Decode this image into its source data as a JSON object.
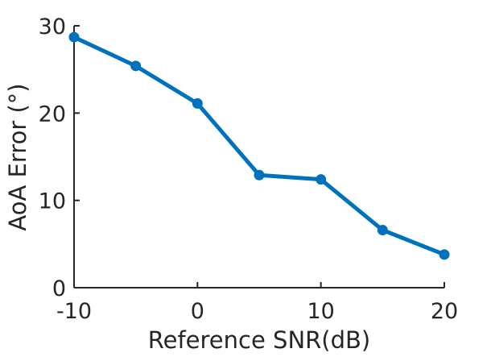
{
  "chart_data": {
    "type": "line",
    "title": "",
    "xlabel": "Reference SNR(dB)",
    "ylabel": "AoA Error (°)",
    "xlim": [
      -10,
      20
    ],
    "ylim": [
      0,
      30
    ],
    "x_ticks": [
      -10,
      0,
      10,
      20
    ],
    "y_ticks": [
      0,
      10,
      20,
      30
    ],
    "grid": false,
    "series": [
      {
        "color": "#0072BD",
        "x": [
          -10,
          -5,
          0,
          5,
          10,
          15,
          20
        ],
        "y": [
          28.7,
          25.4,
          21.1,
          12.9,
          12.4,
          6.6,
          3.8
        ]
      }
    ]
  }
}
